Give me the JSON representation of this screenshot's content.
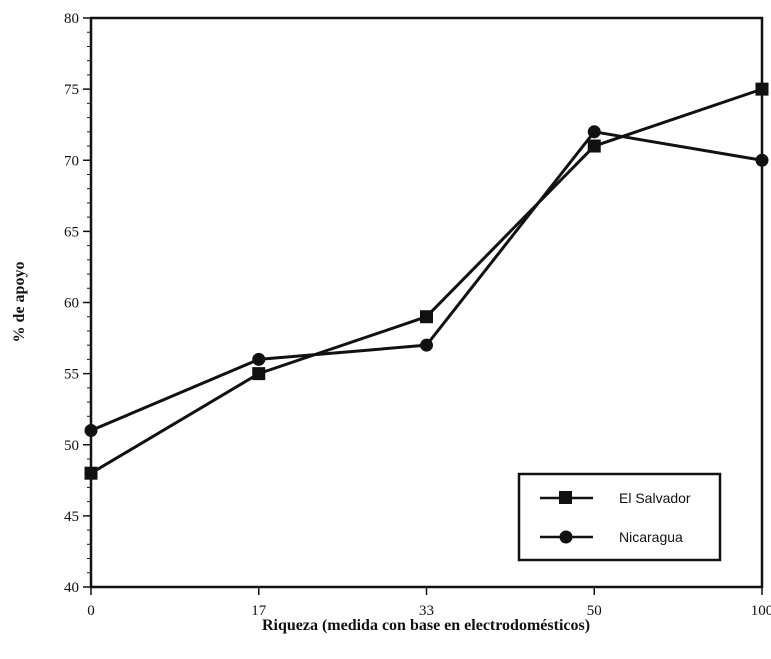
{
  "chart_data": {
    "type": "line",
    "categories": [
      "0",
      "17",
      "33",
      "50",
      "100"
    ],
    "series": [
      {
        "name": "El Salvador",
        "values": [
          48,
          55,
          59,
          71,
          75
        ],
        "marker": "square"
      },
      {
        "name": "Nicaragua",
        "values": [
          51,
          56,
          57,
          72,
          70
        ],
        "marker": "circle"
      }
    ],
    "xlabel": "Riqueza (medida con base en electrodomésticos)",
    "ylabel": "% de apoyo",
    "ylim": [
      40,
      80
    ],
    "yticks": [
      "40",
      "45",
      "50",
      "55",
      "60",
      "65",
      "70",
      "75",
      "80"
    ],
    "grid": false,
    "legend_position": "bottom-right",
    "colors": {
      "line": "#111111",
      "background": "#ffffff"
    }
  }
}
